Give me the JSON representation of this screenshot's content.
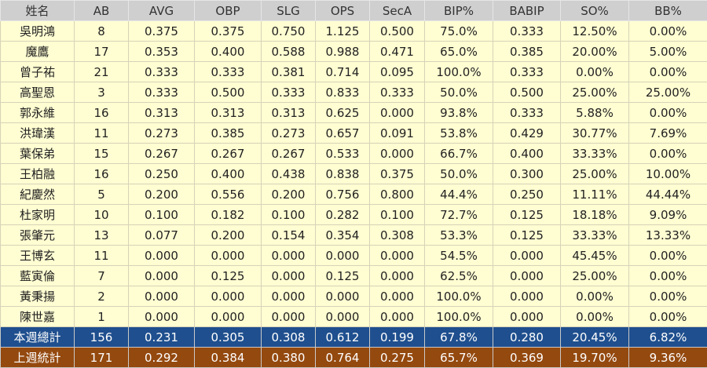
{
  "table": {
    "headers": [
      "姓名",
      "AB",
      "AVG",
      "OBP",
      "SLG",
      "OPS",
      "SecA",
      "BIP%",
      "BABIP",
      "SO%",
      "BB%"
    ],
    "rows": [
      [
        "吳明鴻",
        "8",
        "0.375",
        "0.375",
        "0.750",
        "1.125",
        "0.500",
        "75.0%",
        "0.333",
        "12.50%",
        "0.00%"
      ],
      [
        "魔鷹",
        "17",
        "0.353",
        "0.400",
        "0.588",
        "0.988",
        "0.471",
        "65.0%",
        "0.385",
        "20.00%",
        "5.00%"
      ],
      [
        "曾子祐",
        "21",
        "0.333",
        "0.333",
        "0.381",
        "0.714",
        "0.095",
        "100.0%",
        "0.333",
        "0.00%",
        "0.00%"
      ],
      [
        "高聖恩",
        "3",
        "0.333",
        "0.500",
        "0.333",
        "0.833",
        "0.333",
        "50.0%",
        "0.500",
        "25.00%",
        "25.00%"
      ],
      [
        "郭永維",
        "16",
        "0.313",
        "0.313",
        "0.313",
        "0.625",
        "0.000",
        "93.8%",
        "0.333",
        "5.88%",
        "0.00%"
      ],
      [
        "洪瑋漢",
        "11",
        "0.273",
        "0.385",
        "0.273",
        "0.657",
        "0.091",
        "53.8%",
        "0.429",
        "30.77%",
        "7.69%"
      ],
      [
        "葉保弟",
        "15",
        "0.267",
        "0.267",
        "0.267",
        "0.533",
        "0.000",
        "66.7%",
        "0.400",
        "33.33%",
        "0.00%"
      ],
      [
        "王柏融",
        "16",
        "0.250",
        "0.400",
        "0.438",
        "0.838",
        "0.375",
        "50.0%",
        "0.300",
        "25.00%",
        "10.00%"
      ],
      [
        "紀慶然",
        "5",
        "0.200",
        "0.556",
        "0.200",
        "0.756",
        "0.800",
        "44.4%",
        "0.250",
        "11.11%",
        "44.44%"
      ],
      [
        "杜家明",
        "10",
        "0.100",
        "0.182",
        "0.100",
        "0.282",
        "0.100",
        "72.7%",
        "0.125",
        "18.18%",
        "9.09%"
      ],
      [
        "張肇元",
        "13",
        "0.077",
        "0.200",
        "0.154",
        "0.354",
        "0.308",
        "53.3%",
        "0.125",
        "33.33%",
        "13.33%"
      ],
      [
        "王博玄",
        "11",
        "0.000",
        "0.000",
        "0.000",
        "0.000",
        "0.000",
        "54.5%",
        "0.000",
        "45.45%",
        "0.00%"
      ],
      [
        "藍寅倫",
        "7",
        "0.000",
        "0.125",
        "0.000",
        "0.125",
        "0.000",
        "62.5%",
        "0.000",
        "25.00%",
        "0.00%"
      ],
      [
        "黃秉揚",
        "2",
        "0.000",
        "0.000",
        "0.000",
        "0.000",
        "0.000",
        "100.0%",
        "0.000",
        "0.00%",
        "0.00%"
      ],
      [
        "陳世嘉",
        "1",
        "0.000",
        "0.000",
        "0.000",
        "0.000",
        "0.000",
        "100.0%",
        "0.000",
        "0.00%",
        "0.00%"
      ]
    ],
    "this_week_total": [
      "本週總計",
      "156",
      "0.231",
      "0.305",
      "0.308",
      "0.612",
      "0.199",
      "67.8%",
      "0.280",
      "20.45%",
      "6.82%"
    ],
    "last_week_total": [
      "上週統計",
      "171",
      "0.292",
      "0.384",
      "0.380",
      "0.764",
      "0.275",
      "65.7%",
      "0.369",
      "19.70%",
      "9.36%"
    ]
  },
  "colors": {
    "header": "#cfcfcf",
    "body": "#fffdd2",
    "this_week": "#1f4f8e",
    "last_week": "#94490f"
  }
}
